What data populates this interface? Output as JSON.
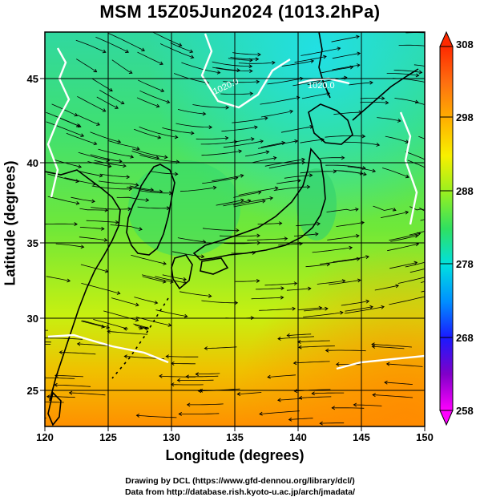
{
  "title": "MSM 15Z05Jun2024 (1013.2hPa)",
  "axes": {
    "xlabel": "Longitude (degrees)",
    "ylabel": "Latitude  (degrees)",
    "x_ticks": [
      "120",
      "125",
      "130",
      "135",
      "140",
      "145",
      "150"
    ],
    "y_ticks": [
      "25",
      "30",
      "35",
      "40",
      "45"
    ],
    "xlim": [
      120,
      150
    ],
    "ylim": [
      22.4,
      47.6
    ]
  },
  "colorbar": {
    "ticks": [
      "308",
      "298",
      "288",
      "278",
      "268",
      "258"
    ],
    "range": [
      258,
      308
    ],
    "colors": [
      "#ff00ff",
      "#8000c8",
      "#1a1aff",
      "#0090ff",
      "#00e0e0",
      "#30e060",
      "#98f020",
      "#f8f000",
      "#ffb000",
      "#ff7010",
      "#ff2a00"
    ]
  },
  "contours": [
    {
      "label": "1020.0",
      "color": "#ffffff"
    },
    {
      "label": "1020.0",
      "color": "#ffffff"
    }
  ],
  "credits": {
    "line1": "Drawing by DCL (https://www.gfd-dennou.org/library/dcl/)",
    "line2": "Data from http://database.rish.kyoto-u.ac.jp/arch/jmadata/"
  },
  "colors": {
    "coast": "#000000",
    "streamline": "#000000",
    "contour": "#ffffff",
    "frame": "#000000"
  }
}
